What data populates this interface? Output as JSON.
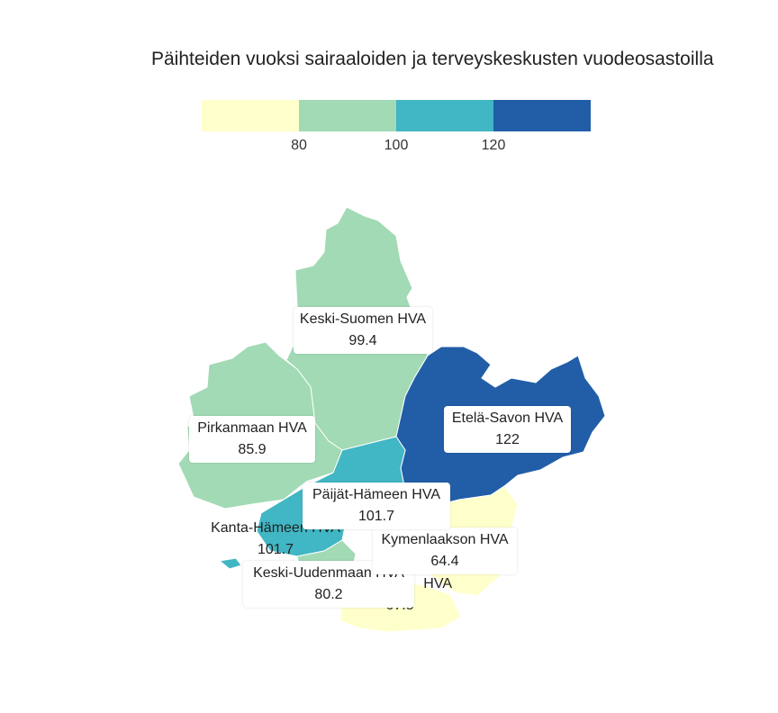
{
  "title": "Päihteiden vuoksi sairaaloiden ja terveyskeskusten vuodeosastoilla",
  "legend": {
    "colors": [
      "#ffffcc",
      "#a1dab4",
      "#41b6c4",
      "#225ea8"
    ],
    "ticks": [
      "80",
      "100",
      "120"
    ]
  },
  "regions": [
    {
      "name": "Keski-Suomen HVA",
      "value": "99.4",
      "color": "#a1dab4"
    },
    {
      "name": "Pirkanmaan HVA",
      "value": "85.9",
      "color": "#a1dab4"
    },
    {
      "name": "Etelä-Savon HVA",
      "value": "122",
      "color": "#225ea8"
    },
    {
      "name": "Päijät-Hämeen HVA",
      "value": "101.7",
      "color": "#41b6c4"
    },
    {
      "name": "Kanta-Hämeen HVA",
      "value": "101.7",
      "color": "#41b6c4"
    },
    {
      "name": "Kymenlaakson HVA",
      "value": "64.4",
      "color": "#ffffcc"
    },
    {
      "name": "Keski-Uudenmaan HVA",
      "value": "80.2",
      "color": "#a1dab4"
    },
    {
      "name": "HVA",
      "value": "67.8",
      "color": "#ffffcc"
    }
  ]
}
